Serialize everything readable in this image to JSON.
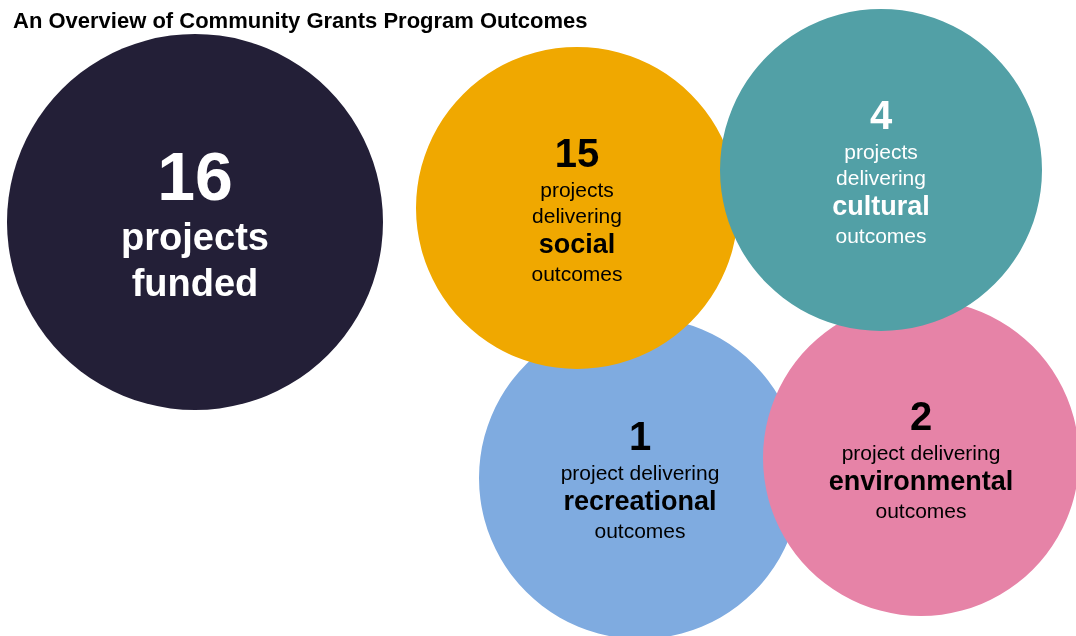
{
  "chart_data": {
    "type": "other",
    "title": "An Overview of Community Grants Program Outcomes",
    "categories": [
      "projects\nfunded",
      "projects\ndelivering\nsocial\noutcomes",
      "projects\ndelivering\ncultural\noutcomes",
      "project delivering\nrecreational\noutcomes",
      "project delivering\nenvironmental\noutcomes"
    ],
    "values": [
      16,
      15,
      4,
      1,
      2
    ],
    "data_labels": true,
    "colors": [
      "#231f37",
      "#f0a800",
      "#52a0a6",
      "#7fabe0",
      "#e683a7"
    ]
  }
}
